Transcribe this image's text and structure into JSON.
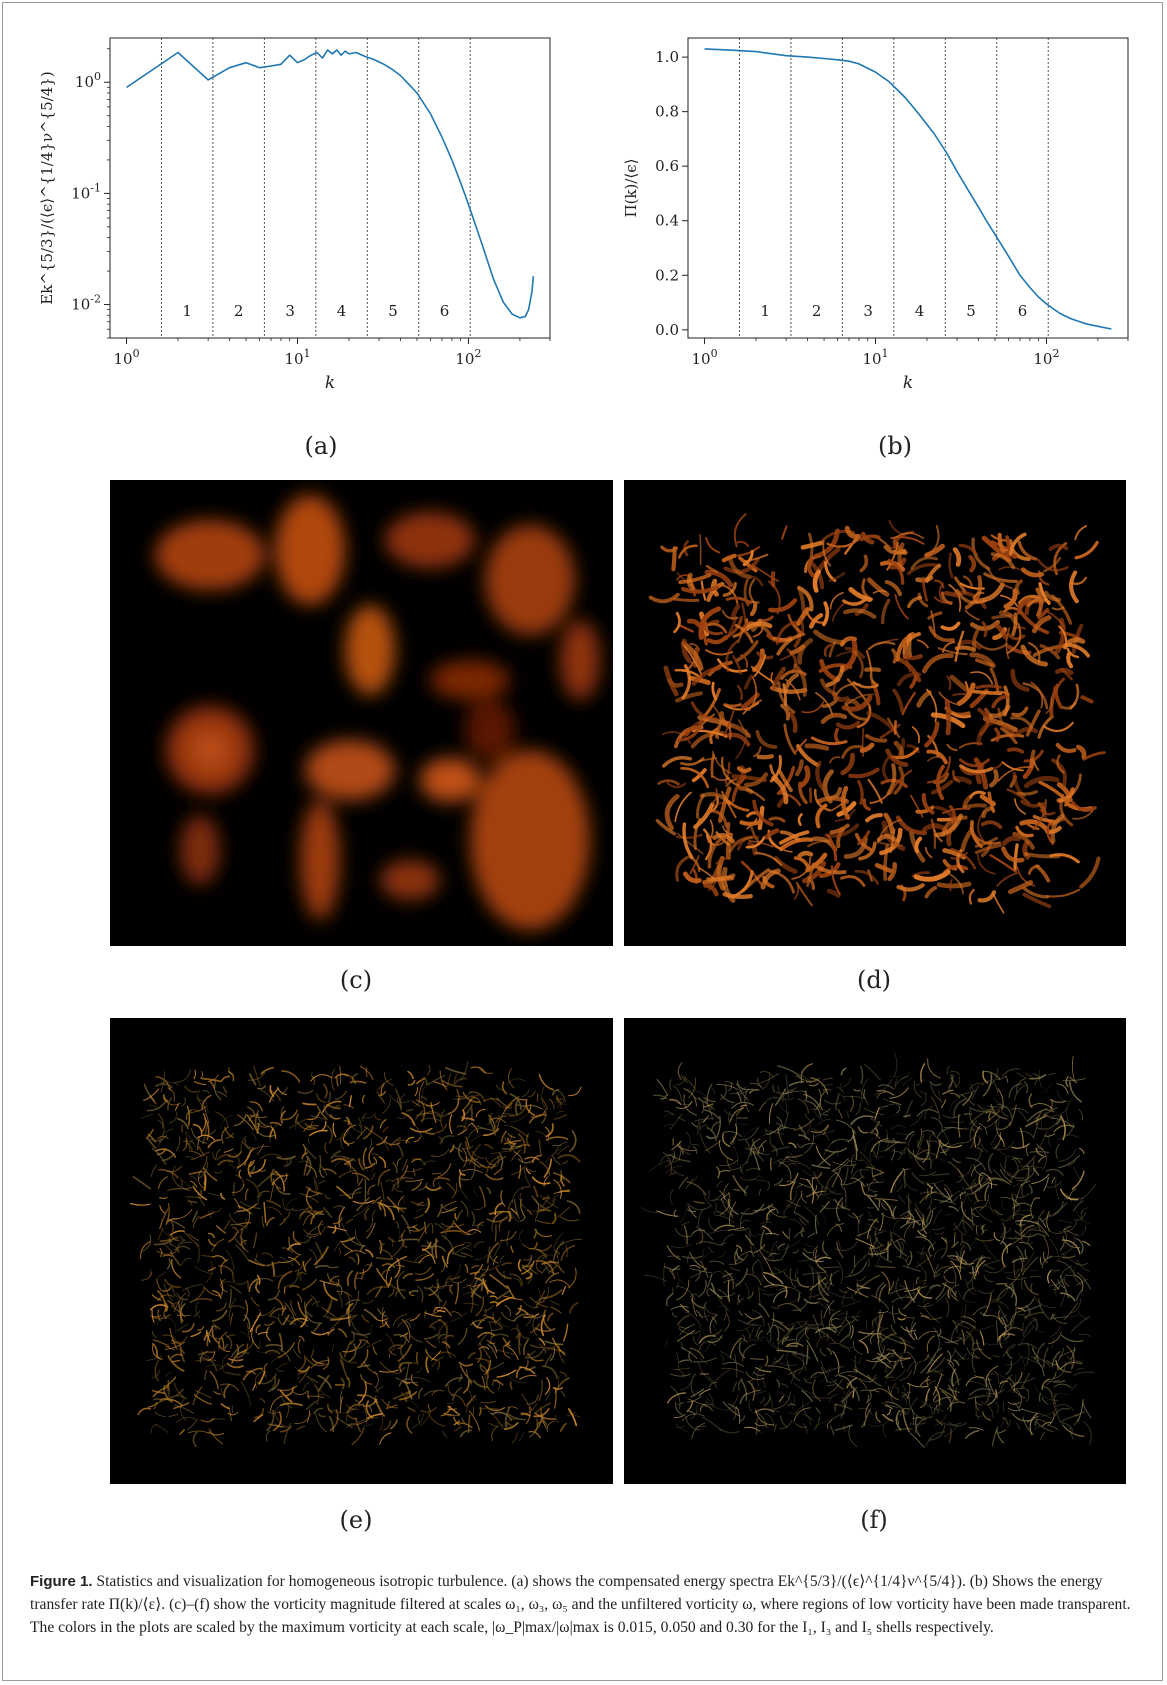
{
  "figure": {
    "caption_label": "Figure 1.",
    "caption_text": " Statistics and visualization for homogeneous isotropic turbulence. (a) shows the compensated energy spectra Ek^{5/3}/(⟨ϵ⟩^{1/4}ν^{5/4}). (b) Shows the energy transfer rate Π(k)/⟨ε⟩. (c)–(f) show the vorticity magnitude filtered at scales ω₁, ω₃, ω₅ and the unfiltered vorticity ω, where regions of low vorticity have been made transparent. The colors in the plots are scaled by the maximum vorticity at each scale, |ω_P|max/|ω|max is 0.015, 0.050 and 0.30 for the I₁, I₃ and I₅ shells respectively.",
    "panel_labels": [
      "(a)",
      "(b)",
      "(c)",
      "(d)",
      "(e)",
      "(f)"
    ]
  },
  "chart_data": [
    {
      "type": "line",
      "panel": "(a)",
      "xlabel": "k",
      "ylabel": "Ek^{5/3}/(⟨ϵ⟩^{1/4}ν^{5/4})",
      "xscale": "log",
      "yscale": "log",
      "xlim": [
        0.8,
        300
      ],
      "ylim": [
        0.005,
        2.5
      ],
      "x_ticks": [
        "10^0",
        "10^1",
        "10^2"
      ],
      "y_ticks": [
        "10^{-2}",
        "10^{-1}",
        "10^0"
      ],
      "line_color": "#1f77b4",
      "shell_boundaries": [
        1.6,
        3.2,
        6.4,
        12.8,
        25.6,
        51.2,
        102.4
      ],
      "shell_labels": [
        "1",
        "2",
        "3",
        "4",
        "5",
        "6"
      ],
      "series": [
        {
          "x": [
            1,
            2,
            3,
            4,
            5,
            6,
            7,
            8,
            9,
            10,
            11,
            12,
            13,
            14,
            15,
            16,
            17,
            18,
            19,
            20,
            22,
            25,
            28,
            32,
            36,
            40,
            45,
            50,
            60,
            70,
            80,
            90,
            100,
            120,
            140,
            160,
            180,
            200,
            215,
            225,
            235,
            240
          ],
          "values": [
            0.9,
            1.85,
            1.05,
            1.35,
            1.5,
            1.35,
            1.4,
            1.45,
            1.75,
            1.5,
            1.6,
            1.75,
            1.85,
            1.65,
            1.95,
            1.8,
            1.95,
            1.75,
            1.9,
            1.8,
            1.85,
            1.7,
            1.6,
            1.45,
            1.3,
            1.15,
            0.95,
            0.8,
            0.52,
            0.32,
            0.2,
            0.125,
            0.08,
            0.035,
            0.017,
            0.0105,
            0.0082,
            0.0076,
            0.0078,
            0.009,
            0.013,
            0.018
          ]
        }
      ]
    },
    {
      "type": "line",
      "panel": "(b)",
      "xlabel": "k",
      "ylabel": "Π(k)/⟨ϵ⟩",
      "xscale": "log",
      "yscale": "linear",
      "xlim": [
        0.8,
        300
      ],
      "ylim": [
        -0.03,
        1.07
      ],
      "x_ticks": [
        "10^0",
        "10^1",
        "10^2"
      ],
      "y_ticks": [
        "0.0",
        "0.2",
        "0.4",
        "0.6",
        "0.8",
        "1.0"
      ],
      "line_color": "#1f77b4",
      "shell_boundaries": [
        1.6,
        3.2,
        6.4,
        12.8,
        25.6,
        51.2,
        102.4
      ],
      "shell_labels": [
        "1",
        "2",
        "3",
        "4",
        "5",
        "6"
      ],
      "series": [
        {
          "x": [
            1,
            1.5,
            2,
            3,
            4,
            5,
            6,
            7,
            8,
            10,
            12,
            15,
            18,
            22,
            26,
            30,
            35,
            40,
            45,
            50,
            60,
            70,
            80,
            90,
            100,
            120,
            140,
            170,
            200,
            240
          ],
          "values": [
            1.03,
            1.025,
            1.02,
            1.005,
            1.0,
            0.995,
            0.99,
            0.985,
            0.975,
            0.945,
            0.91,
            0.85,
            0.79,
            0.72,
            0.65,
            0.58,
            0.51,
            0.45,
            0.395,
            0.35,
            0.27,
            0.2,
            0.155,
            0.12,
            0.095,
            0.06,
            0.04,
            0.022,
            0.013,
            0.003
          ]
        }
      ]
    }
  ],
  "panels": {
    "c": {
      "colors": [
        "#8a2a06",
        "#b14a12",
        "#5a1706",
        "#c9541a"
      ]
    },
    "d": {
      "colors": [
        "#c4621c",
        "#9a4010",
        "#e07a28"
      ]
    },
    "e": {
      "colors": [
        "#a8741e",
        "#6d5a2a",
        "#d08a2c"
      ]
    },
    "f": {
      "colors": [
        "#8a7f52",
        "#5d563a",
        "#c2a055"
      ]
    }
  }
}
